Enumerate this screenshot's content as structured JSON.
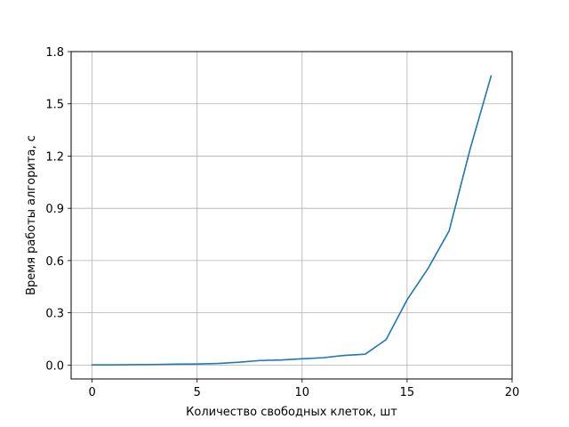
{
  "chart_data": {
    "type": "line",
    "title": "",
    "xlabel": "Количество свободных клеток, шт",
    "ylabel": "Время работы алгорита, с",
    "xlim": [
      -1,
      20
    ],
    "ylim": [
      -0.08,
      1.8
    ],
    "xticks": [
      0,
      5,
      10,
      15,
      20
    ],
    "xtick_labels": [
      "0",
      "5",
      "10",
      "15",
      "20"
    ],
    "yticks": [
      0.0,
      0.3,
      0.6,
      0.9,
      1.2,
      1.5,
      1.8
    ],
    "ytick_labels": [
      "0.0",
      "0.3",
      "0.6",
      "0.9",
      "1.2",
      "1.5",
      "1.8"
    ],
    "grid": true,
    "legend": "none",
    "series": [
      {
        "color": "#1f77b4",
        "x": [
          0,
          1,
          2,
          3,
          4,
          5,
          6,
          7,
          8,
          9,
          10,
          11,
          12,
          13,
          14,
          15,
          16,
          17,
          18,
          19
        ],
        "values": [
          0.001,
          0.001,
          0.002,
          0.003,
          0.005,
          0.006,
          0.009,
          0.016,
          0.026,
          0.029,
          0.036,
          0.042,
          0.055,
          0.062,
          0.146,
          0.375,
          0.555,
          0.77,
          1.24,
          1.66
        ]
      }
    ]
  }
}
